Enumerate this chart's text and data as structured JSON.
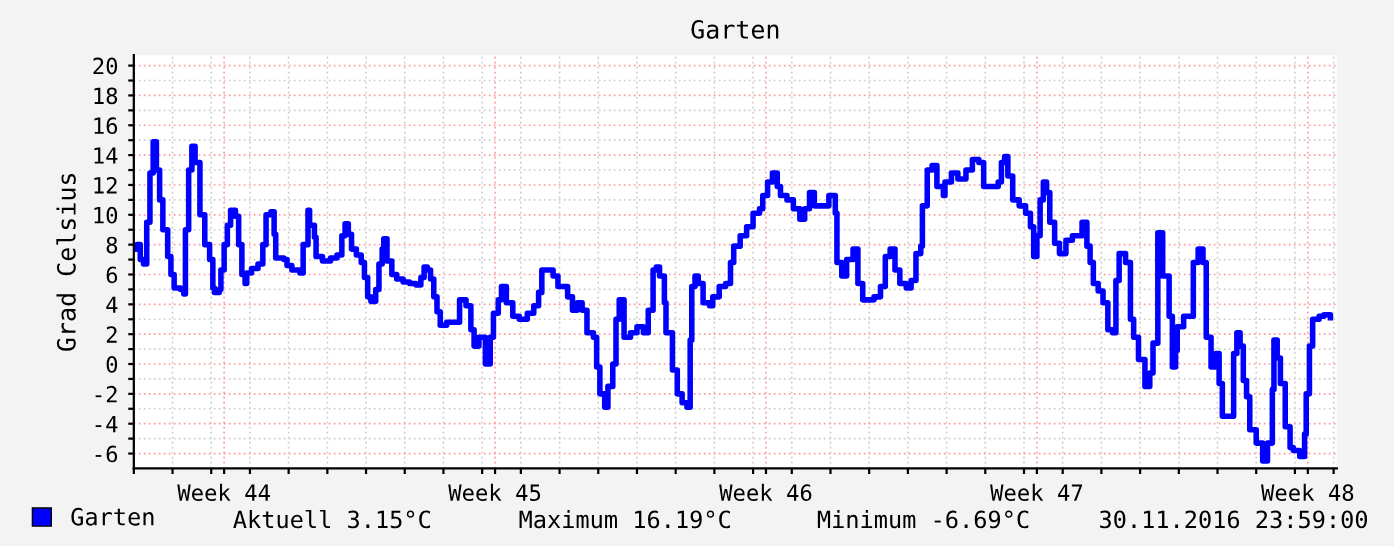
{
  "chart_data": {
    "type": "step",
    "title": "Garten",
    "ylabel": "Grad Celsius",
    "series": [
      {
        "name": "Garten",
        "color": "#0000ff",
        "x": [
          "2016-10-31T00:00",
          "2016-10-31T02:00",
          "2016-10-31T04:00",
          "2016-10-31T06:00",
          "2016-10-31T08:00",
          "2016-10-31T10:00",
          "2016-10-31T12:00",
          "2016-10-31T14:00",
          "2016-10-31T16:00",
          "2016-10-31T18:00",
          "2016-10-31T21:00",
          "2016-10-31T23:00",
          "2016-11-01T01:00",
          "2016-11-01T05:00",
          "2016-11-01T07:00",
          "2016-11-01T08:00",
          "2016-11-01T10:00",
          "2016-11-01T12:00",
          "2016-11-01T14:00",
          "2016-11-01T17:00",
          "2016-11-01T20:00",
          "2016-11-01T23:00",
          "2016-11-02T01:00",
          "2016-11-02T02:00",
          "2016-11-02T05:00",
          "2016-11-02T06:00",
          "2016-11-02T08:00",
          "2016-11-02T10:00",
          "2016-11-02T12:00",
          "2016-11-02T15:00",
          "2016-11-02T17:00",
          "2016-11-02T19:00",
          "2016-11-02T21:00",
          "2016-11-02T22:00",
          "2016-11-03T01:00",
          "2016-11-03T05:00",
          "2016-11-03T08:00",
          "2016-11-03T10:00",
          "2016-11-03T13:00",
          "2016-11-03T15:00",
          "2016-11-03T16:00",
          "2016-11-03T21:00",
          "2016-11-03T23:00",
          "2016-11-04T02:00",
          "2016-11-04T07:00",
          "2016-11-04T09:00",
          "2016-11-04T12:00",
          "2016-11-04T13:00",
          "2016-11-04T16:00",
          "2016-11-04T17:00",
          "2016-11-04T21:00",
          "2016-11-05T02:00",
          "2016-11-05T06:00",
          "2016-11-05T09:00",
          "2016-11-05T11:00",
          "2016-11-05T13:00",
          "2016-11-05T15:00",
          "2016-11-05T18:00",
          "2016-11-05T21:00",
          "2016-11-05T23:00",
          "2016-11-06T01:00",
          "2016-11-06T03:00",
          "2016-11-06T06:00",
          "2016-11-06T08:00",
          "2016-11-06T10:00",
          "2016-11-06T11:00",
          "2016-11-06T13:00",
          "2016-11-06T16:00",
          "2016-11-06T19:00",
          "2016-11-06T23:00",
          "2016-11-07T03:00",
          "2016-11-07T07:00",
          "2016-11-07T10:00",
          "2016-11-07T12:00",
          "2016-11-07T14:00",
          "2016-11-07T16:00",
          "2016-11-07T18:00",
          "2016-11-07T20:00",
          "2016-11-07T22:00",
          "2016-11-08T02:00",
          "2016-11-08T06:00",
          "2016-11-08T08:00",
          "2016-11-08T10:00",
          "2016-11-08T14:00",
          "2016-11-08T17:00",
          "2016-11-08T19:00",
          "2016-11-08T22:00",
          "2016-11-09T00:00",
          "2016-11-09T02:00",
          "2016-11-09T05:00",
          "2016-11-09T07:00",
          "2016-11-09T10:00",
          "2016-11-09T12:00",
          "2016-11-09T15:00",
          "2016-11-09T19:00",
          "2016-11-09T23:00",
          "2016-11-10T04:00",
          "2016-11-10T08:00",
          "2016-11-10T11:00",
          "2016-11-10T13:00",
          "2016-11-10T16:00",
          "2016-11-10T20:00",
          "2016-11-10T23:00",
          "2016-11-11T05:00",
          "2016-11-11T08:00",
          "2016-11-11T11:00",
          "2016-11-11T14:00",
          "2016-11-11T17:00",
          "2016-11-11T21:00",
          "2016-11-11T23:00",
          "2016-11-12T01:00",
          "2016-11-12T04:00",
          "2016-11-12T06:00",
          "2016-11-12T09:00",
          "2016-11-12T11:00",
          "2016-11-12T13:00",
          "2016-11-12T16:00",
          "2016-11-12T20:00",
          "2016-11-13T00:00",
          "2016-11-13T04:00",
          "2016-11-13T07:00",
          "2016-11-13T10:00",
          "2016-11-13T12:00",
          "2016-11-13T14:00",
          "2016-11-13T17:00",
          "2016-11-13T18:00",
          "2016-11-13T22:00",
          "2016-11-14T01:00",
          "2016-11-14T04:00",
          "2016-11-14T07:00",
          "2016-11-14T09:00",
          "2016-11-14T10:00",
          "2016-11-14T12:00",
          "2016-11-14T14:00",
          "2016-11-14T17:00",
          "2016-11-14T21:00",
          "2016-11-14T23:00",
          "2016-11-15T03:00",
          "2016-11-15T07:00",
          "2016-11-15T10:00",
          "2016-11-15T12:00",
          "2016-11-15T16:00",
          "2016-11-15T20:00",
          "2016-11-16T00:00",
          "2016-11-16T04:00",
          "2016-11-16T06:00",
          "2016-11-16T09:00",
          "2016-11-16T12:00",
          "2016-11-16T15:00",
          "2016-11-16T17:00",
          "2016-11-16T21:00",
          "2016-11-17T01:00",
          "2016-11-17T05:00",
          "2016-11-17T08:00",
          "2016-11-17T11:00",
          "2016-11-17T14:00",
          "2016-11-17T19:00",
          "2016-11-17T23:00",
          "2016-11-18T03:00",
          "2016-11-18T04:00",
          "2016-11-18T07:00",
          "2016-11-18T10:00",
          "2016-11-18T14:00",
          "2016-11-18T17:00",
          "2016-11-18T20:00",
          "2016-11-19T00:00",
          "2016-11-19T03:00",
          "2016-11-19T07:00",
          "2016-11-19T10:00",
          "2016-11-19T13:00",
          "2016-11-19T16:00",
          "2016-11-19T19:00",
          "2016-11-19T23:00",
          "2016-11-20T02:00",
          "2016-11-20T05:00",
          "2016-11-20T08:00",
          "2016-11-20T09:00",
          "2016-11-20T12:00",
          "2016-11-20T15:00",
          "2016-11-20T18:00",
          "2016-11-20T22:00",
          "2016-11-20T23:00",
          "2016-11-21T03:00",
          "2016-11-21T07:00",
          "2016-11-21T12:00",
          "2016-11-21T16:00",
          "2016-11-21T20:00",
          "2016-11-21T23:00",
          "2016-11-22T05:00",
          "2016-11-22T08:00",
          "2016-11-22T10:00",
          "2016-11-22T12:00",
          "2016-11-22T14:00",
          "2016-11-22T17:00",
          "2016-11-22T21:00",
          "2016-11-23T01:00",
          "2016-11-23T04:00",
          "2016-11-23T06:00",
          "2016-11-23T08:00",
          "2016-11-23T10:00",
          "2016-11-23T12:00",
          "2016-11-23T14:00",
          "2016-11-23T16:00",
          "2016-11-23T19:00",
          "2016-11-23T22:00",
          "2016-11-24T02:00",
          "2016-11-24T06:00",
          "2016-11-24T10:00",
          "2016-11-24T12:00",
          "2016-11-24T15:00",
          "2016-11-24T17:00",
          "2016-11-24T19:00",
          "2016-11-24T22:00",
          "2016-11-25T01:00",
          "2016-11-25T04:00",
          "2016-11-25T07:00",
          "2016-11-25T09:00",
          "2016-11-25T11:00",
          "2016-11-25T15:00",
          "2016-11-25T18:00",
          "2016-11-25T20:00",
          "2016-11-25T23:00",
          "2016-11-26T03:00",
          "2016-11-26T06:00",
          "2016-11-26T08:00",
          "2016-11-26T11:00",
          "2016-11-26T12:00",
          "2016-11-26T14:00",
          "2016-11-26T18:00",
          "2016-11-26T20:00",
          "2016-11-26T22:00",
          "2016-11-26T23:00",
          "2016-11-27T03:00",
          "2016-11-27T07:00",
          "2016-11-27T09:00",
          "2016-11-27T12:00",
          "2016-11-27T15:00",
          "2016-11-27T17:00",
          "2016-11-27T20:00",
          "2016-11-27T23:00",
          "2016-11-28T01:00",
          "2016-11-28T03:00",
          "2016-11-28T07:00",
          "2016-11-28T10:00",
          "2016-11-28T12:00",
          "2016-11-28T14:00",
          "2016-11-28T16:00",
          "2016-11-28T18:00",
          "2016-11-28T20:00",
          "2016-11-29T00:00",
          "2016-11-29T04:00",
          "2016-11-29T07:00",
          "2016-11-29T10:00",
          "2016-11-29T11:00",
          "2016-11-29T13:00",
          "2016-11-29T15:00",
          "2016-11-29T18:00",
          "2016-11-29T21:00",
          "2016-11-29T23:00",
          "2016-11-30T03:00",
          "2016-11-30T06:00",
          "2016-11-30T07:00",
          "2016-11-30T09:00",
          "2016-11-30T11:00",
          "2016-11-30T15:00",
          "2016-11-30T18:00",
          "2016-11-30T22:00"
        ],
        "values": [
          7.7,
          8.0,
          7.0,
          6.7,
          9.5,
          12.8,
          14.9,
          13,
          11,
          9,
          7.2,
          6,
          5.1,
          5,
          4.7,
          9,
          13,
          14.6,
          13.5,
          10,
          8,
          7,
          5.1,
          4.8,
          5,
          6.3,
          8,
          9.3,
          10.3,
          9.9,
          8,
          6,
          5.4,
          6.1,
          6.4,
          6.7,
          8,
          10,
          10.2,
          8.7,
          7.1,
          7,
          6.6,
          6.3,
          6.1,
          8,
          10.3,
          9.3,
          8.5,
          7.2,
          6.9,
          7.1,
          7.3,
          8.6,
          9.4,
          8.7,
          7.7,
          7.3,
          6.8,
          5.8,
          4.5,
          4.2,
          5,
          6.7,
          7.7,
          8.4,
          6.9,
          6,
          5.7,
          5.5,
          5.4,
          5.3,
          5.8,
          6.5,
          6.3,
          5.7,
          4.5,
          3.5,
          2.6,
          2.8,
          2.8,
          2.8,
          4.3,
          3.9,
          2.3,
          1.2,
          1.8,
          1.8,
          0.0,
          1.8,
          3.4,
          4.3,
          5.2,
          4.1,
          3.2,
          3.0,
          3.4,
          3.9,
          4.8,
          6.3,
          6.3,
          5.9,
          5.2,
          4.5,
          3.6,
          4.1,
          3.6,
          2.1,
          1.8,
          -0.2,
          -2.0,
          -2.9,
          -1.5,
          0.0,
          3.0,
          4.3,
          1.8,
          2.1,
          2.5,
          2.1,
          3.6,
          6.3,
          6.5,
          5.9,
          4.1,
          2.1,
          -0.4,
          -2.0,
          -2.6,
          -2.9,
          1.6,
          5.2,
          5.9,
          5.4,
          4.1,
          3.9,
          4.5,
          5.2,
          5.4,
          6.8,
          7.9,
          8.6,
          9.2,
          10.1,
          10.4,
          11.3,
          12.2,
          12.8,
          11.9,
          11.3,
          11.0,
          10.4,
          9.7,
          10.4,
          11.5,
          10.6,
          10.6,
          11.3,
          10.1,
          6.8,
          5.9,
          7.0,
          7.7,
          5.4,
          4.3,
          4.3,
          4.5,
          5.2,
          7.2,
          7.7,
          6.3,
          5.4,
          5.1,
          5.6,
          7.4,
          7.9,
          10.6,
          13.0,
          13.3,
          11.9,
          11.3,
          12.2,
          12.8,
          12.4,
          13.0,
          13.7,
          13.5,
          11.9,
          11.9,
          12.2,
          13.5,
          13.9,
          12.6,
          11.0,
          10.6,
          10.1,
          9.2,
          7.2,
          8.6,
          11.0,
          12.2,
          11.5,
          9.5,
          8.1,
          7.4,
          8.3,
          8.6,
          8.6,
          9.5,
          7.9,
          6.8,
          5.4,
          4.9,
          4.1,
          2.3,
          2.1,
          5.6,
          7.4,
          6.8,
          3.0,
          1.8,
          0.3,
          -1.5,
          -0.6,
          1.4,
          8.8,
          8.8,
          5.9,
          3.2,
          -0.2,
          0.9,
          2.5,
          3.2,
          3.2,
          6.8,
          7.7,
          6.8,
          1.8,
          -0.2,
          0.7,
          -1.3,
          -3.5,
          -3.5,
          0.7,
          2.1,
          1.2,
          -1.1,
          -2.2,
          -4.4,
          -5.3,
          -6.5,
          -5.3,
          -1.7,
          1.6,
          0.4,
          -1.3,
          -4.2,
          -5.6,
          -5.8,
          -6.2,
          -4.7,
          -2.0,
          1.2,
          3.0,
          3.2,
          3.3,
          3.1
        ]
      }
    ],
    "xlim": [
      "2016-10-31T00:00",
      "2016-12-01T02:00"
    ],
    "xticks": [
      {
        "value": "2016-10-31",
        "label": null
      },
      {
        "value": "2016-11-01",
        "label": null
      },
      {
        "value": "2016-11-02",
        "label": null
      },
      {
        "value": "2016-11-02T08:00",
        "label": "Week 44"
      },
      {
        "value": "2016-11-03",
        "label": null
      },
      {
        "value": "2016-11-04",
        "label": null
      },
      {
        "value": "2016-11-05",
        "label": null
      },
      {
        "value": "2016-11-06",
        "label": null
      },
      {
        "value": "2016-11-07",
        "label": null
      },
      {
        "value": "2016-11-08",
        "label": null
      },
      {
        "value": "2016-11-09",
        "label": null
      },
      {
        "value": "2016-11-09T08:00",
        "label": "Week 45"
      },
      {
        "value": "2016-11-10",
        "label": null
      },
      {
        "value": "2016-11-11",
        "label": null
      },
      {
        "value": "2016-11-12",
        "label": null
      },
      {
        "value": "2016-11-13",
        "label": null
      },
      {
        "value": "2016-11-14",
        "label": null
      },
      {
        "value": "2016-11-15",
        "label": null
      },
      {
        "value": "2016-11-16",
        "label": null
      },
      {
        "value": "2016-11-16T08:00",
        "label": "Week 46"
      },
      {
        "value": "2016-11-17",
        "label": null
      },
      {
        "value": "2016-11-18",
        "label": null
      },
      {
        "value": "2016-11-19",
        "label": null
      },
      {
        "value": "2016-11-20",
        "label": null
      },
      {
        "value": "2016-11-21",
        "label": null
      },
      {
        "value": "2016-11-22",
        "label": null
      },
      {
        "value": "2016-11-23",
        "label": null
      },
      {
        "value": "2016-11-23T08:00",
        "label": "Week 47"
      },
      {
        "value": "2016-11-24",
        "label": null
      },
      {
        "value": "2016-11-25",
        "label": null
      },
      {
        "value": "2016-11-26",
        "label": null
      },
      {
        "value": "2016-11-27",
        "label": null
      },
      {
        "value": "2016-11-28",
        "label": null
      },
      {
        "value": "2016-11-29",
        "label": null
      },
      {
        "value": "2016-11-30",
        "label": null
      },
      {
        "value": "2016-11-30T08:00",
        "label": "Week 48"
      },
      {
        "value": "2016-12-01",
        "label": null
      }
    ],
    "ylim": [
      -7,
      20.7
    ],
    "yticks": [
      -6,
      {
        "value": -5,
        "label": null
      },
      -4,
      {
        "value": -3,
        "label": null
      },
      -2,
      {
        "value": -1,
        "label": null
      },
      0,
      {
        "value": 1,
        "label": null
      },
      2,
      {
        "value": 3,
        "label": null
      },
      4,
      {
        "value": 5,
        "label": null
      },
      6,
      {
        "value": 7,
        "label": null
      },
      8,
      {
        "value": 9,
        "label": null
      },
      10,
      {
        "value": 11,
        "label": null
      },
      12,
      {
        "value": 13,
        "label": null
      },
      14,
      {
        "value": 15,
        "label": null
      },
      16,
      {
        "value": 17,
        "label": null
      },
      18,
      {
        "value": 19,
        "label": null
      },
      20
    ],
    "grid": true,
    "legend": "bottom left",
    "line_style": "solid",
    "marker": "none",
    "annotations": [
      "Aktuell 3.15°C",
      "Maximum 16.19°C",
      "Minimum -6.69°C",
      "30.11.2016 23:59:00"
    ]
  }
}
